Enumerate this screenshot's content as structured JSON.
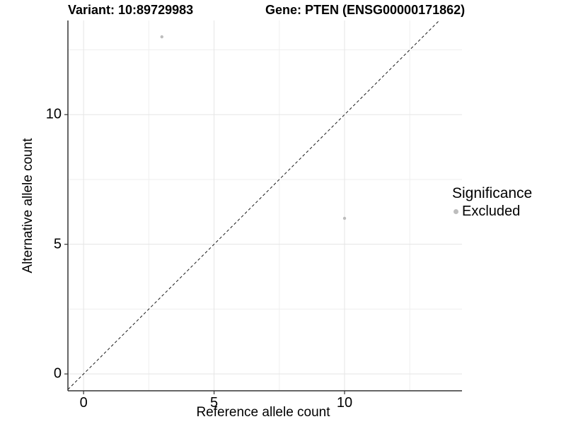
{
  "chart_data": {
    "type": "scatter",
    "title_left": "Variant: 10:89729983",
    "title_right": "Gene: PTEN (ENSG00000171862)",
    "xlabel": "Reference allele count",
    "ylabel": "Alternative allele count",
    "xlim": [
      -0.6,
      14.5
    ],
    "ylim": [
      -0.65,
      13.63
    ],
    "x_ticks": [
      "0",
      "5",
      "10"
    ],
    "x_tick_values": [
      0,
      5,
      10
    ],
    "y_ticks": [
      "0",
      "5",
      "10"
    ],
    "y_tick_values": [
      0,
      5,
      10
    ],
    "x_minor_gridlines": [
      2.5,
      7.5,
      12.5
    ],
    "y_minor_gridlines": [
      2.5,
      7.5,
      12.5
    ],
    "grid": "on",
    "identity_line": {
      "style": "dashed",
      "equation": "y = x",
      "color": "#1a1a1a"
    },
    "series": [
      {
        "name": "Excluded",
        "color": "#bdbdbd",
        "points": [
          {
            "x": 3,
            "y": 13
          },
          {
            "x": 10,
            "y": 6
          }
        ]
      }
    ],
    "legend": {
      "title": "Significance",
      "position": "right",
      "items": [
        {
          "label": "Excluded",
          "color": "#bdbdbd"
        }
      ]
    }
  },
  "colors": {
    "background": "#ffffff",
    "gridline_major": "#e5e5e5",
    "gridline_minor": "#efefef",
    "axis_line": "#333333",
    "point": "#bdbdbd",
    "text": "#000000"
  }
}
